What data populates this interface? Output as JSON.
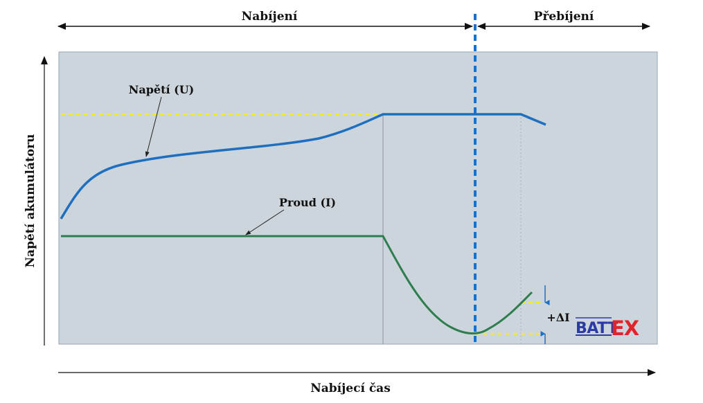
{
  "labels": {
    "phase_charging": "Nabíjení",
    "phase_overcharge": "Přebíjení",
    "voltage_curve": "Napětí (U)",
    "current_curve": "Proud (I)",
    "y_axis": "Napětí akumulátoru",
    "x_axis": "Nabíjecí čas",
    "delta_current": "+ΔI",
    "logo_text": "BATTEX"
  },
  "colors": {
    "plot_bg": "#cdd5dc",
    "voltage": "#1e6fc0",
    "current": "#2e7d4f",
    "reference_dash": "#f3ea2a",
    "phase_divider": "#1573cf",
    "axis": "#111111",
    "logo_blue": "#2c3aa6",
    "logo_red": "#e0232c"
  },
  "icons": {
    "logo": "battex-logo",
    "arrows": [
      "double-arrow-head",
      "arrow-head"
    ]
  }
}
